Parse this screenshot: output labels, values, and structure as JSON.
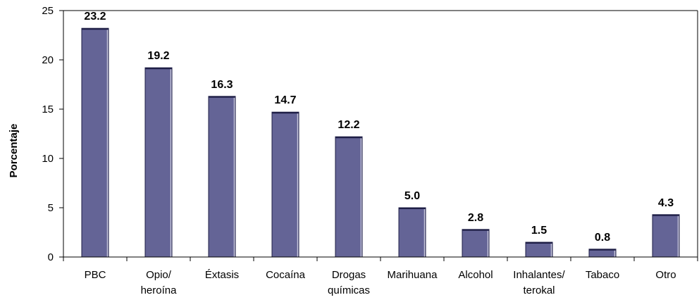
{
  "chart_data": {
    "type": "bar",
    "categories": [
      [
        "PBC"
      ],
      [
        "Opio/",
        "heroína"
      ],
      [
        "Éxtasis"
      ],
      [
        "Cocaína"
      ],
      [
        "Drogas",
        "químicas"
      ],
      [
        "Marihuana"
      ],
      [
        "Alcohol"
      ],
      [
        "Inhalantes/",
        "terokal"
      ],
      [
        "Tabaco"
      ],
      [
        "Otro"
      ]
    ],
    "values": [
      23.2,
      19.2,
      16.3,
      14.7,
      12.2,
      5.0,
      2.8,
      1.5,
      0.8,
      4.3
    ],
    "value_labels": [
      "23.2",
      "19.2",
      "16.3",
      "14.7",
      "12.2",
      "5.0",
      "2.8",
      "1.5",
      "0.8",
      "4.3"
    ],
    "ylabel": "Porcentaje",
    "ylim": [
      0,
      25
    ],
    "yticks": [
      "0",
      "5",
      "10",
      "15",
      "20",
      "25"
    ],
    "bar_color": "#646496",
    "grid": false,
    "legend": "none"
  }
}
